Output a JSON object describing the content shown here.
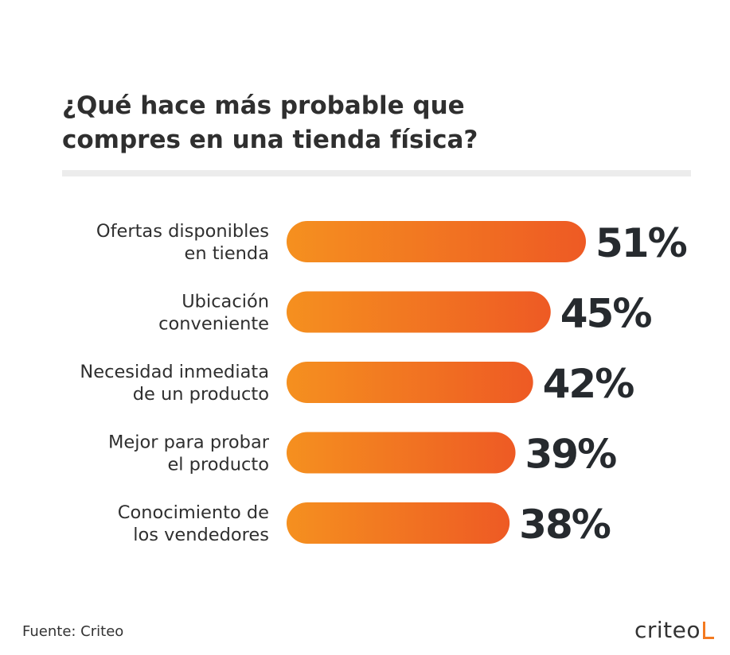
{
  "title_lines": [
    "¿Qué hace más probable que",
    "compres en una tienda física?"
  ],
  "colors": {
    "bar_start": "#f5901f",
    "bar_end": "#ee5a24",
    "label_text": "#2f2f2f",
    "value_text": "#262a2e",
    "divider": "#ececec"
  },
  "chart_data": {
    "type": "bar",
    "orientation": "horizontal",
    "categories": [
      [
        "Ofertas disponibles",
        "en tienda"
      ],
      [
        "Ubicación",
        "conveniente"
      ],
      [
        "Necesidad inmediata",
        "de un producto"
      ],
      [
        "Mejor para probar",
        "el producto"
      ],
      [
        "Conocimiento de",
        "los vendedores"
      ]
    ],
    "values": [
      51,
      45,
      42,
      39,
      38
    ],
    "value_labels": [
      "51%",
      "45%",
      "42%",
      "39%",
      "38%"
    ],
    "unit": "%",
    "xlim": [
      0,
      51
    ],
    "grid": false,
    "legend": "none"
  },
  "footer": {
    "source": "Fuente: Criteo",
    "brand": "criteo"
  }
}
